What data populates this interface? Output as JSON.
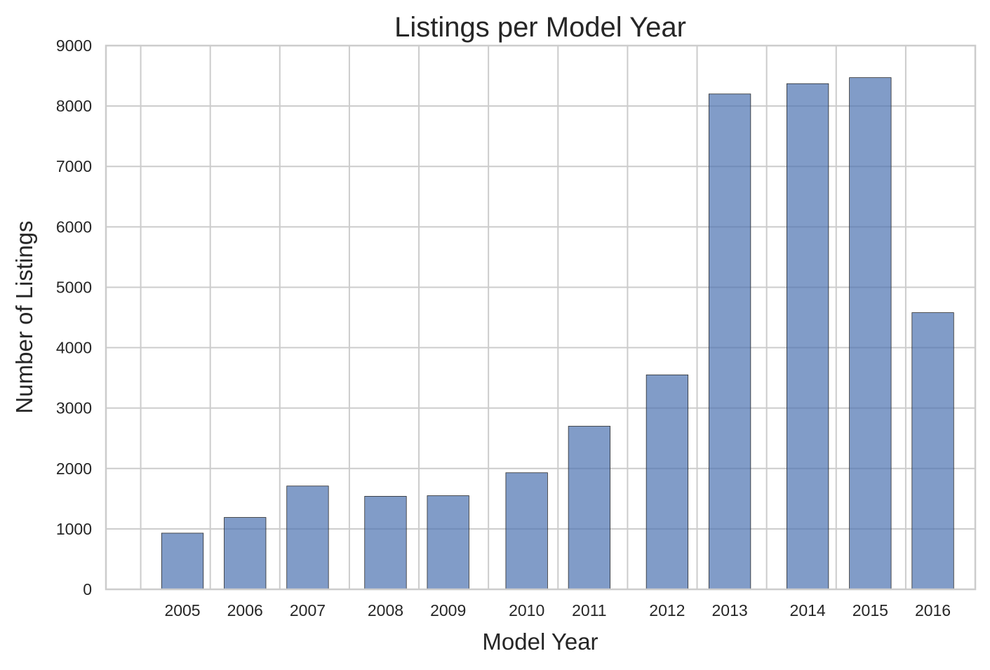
{
  "chart_data": {
    "type": "bar",
    "title": "Listings per Model Year",
    "xlabel": "Model Year",
    "ylabel": "Number of Listings",
    "categories": [
      "2005",
      "2006",
      "2007",
      "2008",
      "2009",
      "2010",
      "2011",
      "2012",
      "2013",
      "2014",
      "2015",
      "2016"
    ],
    "values": [
      930,
      1190,
      1710,
      1540,
      1550,
      1930,
      2700,
      3550,
      8200,
      8370,
      8470,
      4580
    ],
    "x_positions": [
      2005.3,
      2006.2,
      2007.1,
      2008.22,
      2009.12,
      2010.25,
      2011.15,
      2012.27,
      2013.17,
      2014.29,
      2015.19,
      2016.09
    ],
    "x_ticks": [
      2005,
      2006,
      2007,
      2008,
      2009,
      2010,
      2011,
      2012,
      2013,
      2014,
      2015,
      2016
    ],
    "y_ticks": [
      0,
      1000,
      2000,
      3000,
      4000,
      5000,
      6000,
      7000,
      8000,
      9000
    ],
    "xlim": [
      2004.5,
      2017.0
    ],
    "ylim": [
      0,
      9000
    ],
    "bar_width": 0.6,
    "grid": true,
    "legend": "none",
    "bar_color": "#4c72b0"
  }
}
